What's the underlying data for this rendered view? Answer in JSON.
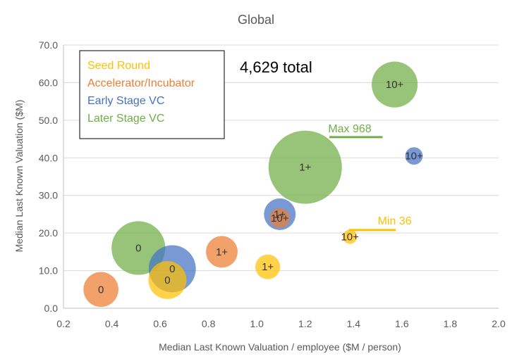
{
  "chart_data": {
    "type": "bubble",
    "title": "Global",
    "xlabel": "Median Last Known Valuation / employee ($M / person)",
    "ylabel": "Median Last Known Valuation ($M)",
    "xlim": [
      0.2,
      2.0
    ],
    "ylim": [
      0,
      70
    ],
    "x_ticks": [
      "0.2",
      "0.4",
      "0.6",
      "0.8",
      "1.0",
      "1.2",
      "1.4",
      "1.6",
      "1.8",
      "2.0"
    ],
    "y_ticks": [
      "0.0",
      "10.0",
      "20.0",
      "30.0",
      "40.0",
      "50.0",
      "60.0",
      "70.0"
    ],
    "grid": "horizontal",
    "total_text": "4,629 total",
    "series": [
      {
        "name": "Seed Round",
        "color": "#FFC000",
        "points": [
          {
            "label": "0",
            "x": 0.63,
            "y": 7.5,
            "size": 260
          },
          {
            "label": "1+",
            "x": 1.045,
            "y": 11.0,
            "size": 110
          },
          {
            "label": "10+",
            "x": 1.385,
            "y": 19.0,
            "size": 36
          }
        ]
      },
      {
        "name": "Accelerator/Incubator",
        "color": "#ED7D31",
        "points": [
          {
            "label": "0",
            "x": 0.355,
            "y": 5.0,
            "size": 220
          },
          {
            "label": "1+",
            "x": 0.855,
            "y": 15.0,
            "size": 180
          },
          {
            "label": "10+",
            "x": 1.095,
            "y": 24.0,
            "size": 70
          }
        ]
      },
      {
        "name": "Early Stage VC",
        "color": "#4472C4",
        "points": [
          {
            "label": "0",
            "x": 0.65,
            "y": 10.5,
            "size": 400
          },
          {
            "label": "1+",
            "x": 1.095,
            "y": 25.0,
            "size": 180
          },
          {
            "label": "10+",
            "x": 1.65,
            "y": 40.5,
            "size": 55
          }
        ]
      },
      {
        "name": "Later Stage VC",
        "color": "#70AD47",
        "points": [
          {
            "label": "0",
            "x": 0.51,
            "y": 16.0,
            "size": 520
          },
          {
            "label": "1+",
            "x": 1.2,
            "y": 37.5,
            "size": 968
          },
          {
            "label": "10+",
            "x": 1.57,
            "y": 59.5,
            "size": 380
          }
        ]
      }
    ],
    "legend": {
      "placement": "top-left",
      "boxed": true
    },
    "annotations": [
      {
        "text": "Max 968",
        "color": "#70AD47",
        "x": 1.295,
        "y": 46.8,
        "line_x": [
          1.3,
          1.52
        ],
        "line_y": 45.5
      },
      {
        "text": "Min 36",
        "color": "#FFC000",
        "x": 1.5,
        "y": 22.3,
        "line_x": [
          1.38,
          1.575
        ],
        "line_y": 20.8
      }
    ]
  }
}
